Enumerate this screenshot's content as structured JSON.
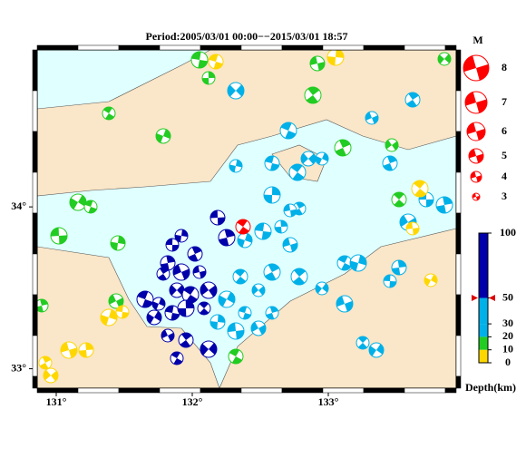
{
  "map": {
    "title": "Period:2005/03/01 00:00−−2015/03/01 18:57",
    "xlim": [
      130.86,
      133.94
    ],
    "ylim": [
      32.88,
      34.97
    ],
    "xticks": [
      {
        "value": 131,
        "label": "131°"
      },
      {
        "value": 132,
        "label": "132°"
      },
      {
        "value": 133,
        "label": "133°"
      }
    ],
    "yticks": [
      {
        "value": 33,
        "label": "33°"
      },
      {
        "value": 34,
        "label": "34°"
      }
    ],
    "magnitude_legend": {
      "title": "M",
      "values": [
        8,
        7,
        6,
        5,
        4,
        3
      ],
      "color": "#ff0000"
    },
    "depth_scale": {
      "title": "Depth(km)",
      "ticks": [
        100,
        50,
        30,
        20,
        10,
        0
      ],
      "lim": [
        0,
        100
      ],
      "colors": [
        "#ffd700",
        "#22cc22",
        "#00b0e8",
        "#00b0e8",
        "#0000aa"
      ]
    }
  }
}
